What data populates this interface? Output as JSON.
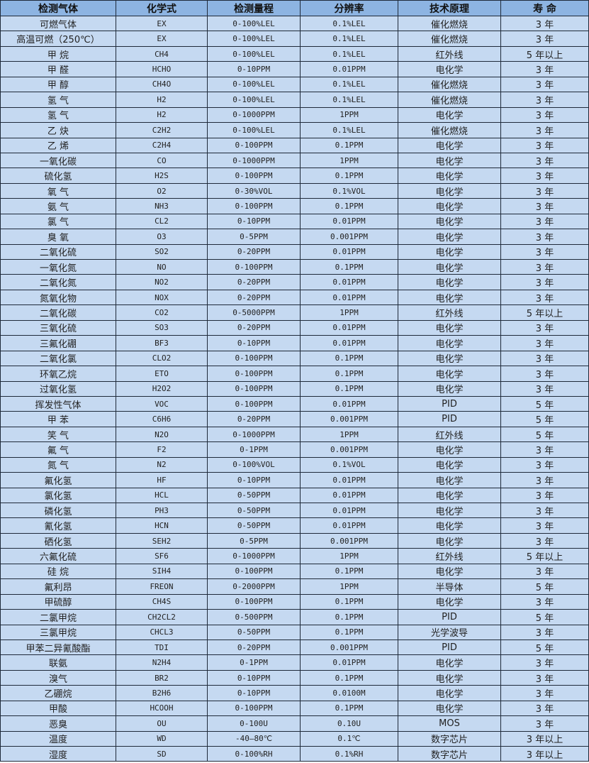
{
  "headers": [
    "检测气体",
    "化学式",
    "检测量程",
    "分辨率",
    "技术原理",
    "寿 命"
  ],
  "rows": [
    [
      "可燃气体",
      "EX",
      "0-100%LEL",
      "0.1%LEL",
      "催化燃烧",
      "3 年"
    ],
    [
      "高温可燃（250℃）",
      "EX",
      "0-100%LEL",
      "0.1%LEL",
      "催化燃烧",
      "3 年"
    ],
    [
      "甲 烷",
      "CH4",
      "0-100%LEL",
      "0.1%LEL",
      "红外线",
      "5 年以上"
    ],
    [
      "甲 醛",
      "HCHO",
      "0-10PPM",
      "0.01PPM",
      "电化学",
      "3 年"
    ],
    [
      "甲 醇",
      "CH4O",
      "0-100%LEL",
      "0.1%LEL",
      "催化燃烧",
      "3 年"
    ],
    [
      "氢 气",
      "H2",
      "0-100%LEL",
      "0.1%LEL",
      "催化燃烧",
      "3 年"
    ],
    [
      "氢 气",
      "H2",
      "0-1000PPM",
      "1PPM",
      "电化学",
      "3 年"
    ],
    [
      "乙 炔",
      "C2H2",
      "0-100%LEL",
      "0.1%LEL",
      "催化燃烧",
      "3 年"
    ],
    [
      "乙 烯",
      "C2H4",
      "0-100PPM",
      "0.1PPM",
      "电化学",
      "3 年"
    ],
    [
      "一氧化碳",
      "CO",
      "0-1000PPM",
      "1PPM",
      "电化学",
      "3 年"
    ],
    [
      "硫化氢",
      "H2S",
      "0-100PPM",
      "0.1PPM",
      "电化学",
      "3 年"
    ],
    [
      "氧 气",
      "O2",
      "0-30%VOL",
      "0.1%VOL",
      "电化学",
      "3 年"
    ],
    [
      "氨 气",
      "NH3",
      "0-100PPM",
      "0.1PPM",
      "电化学",
      "3 年"
    ],
    [
      "氯 气",
      "CL2",
      "0-10PPM",
      "0.01PPM",
      "电化学",
      "3 年"
    ],
    [
      "臭 氧",
      "O3",
      "0-5PPM",
      "0.001PPM",
      "电化学",
      "3 年"
    ],
    [
      "二氧化硫",
      "SO2",
      "0-20PPM",
      "0.01PPM",
      "电化学",
      "3 年"
    ],
    [
      "一氧化氮",
      "NO",
      "0-100PPM",
      "0.1PPM",
      "电化学",
      "3 年"
    ],
    [
      "二氧化氮",
      "NO2",
      "0-20PPM",
      "0.01PPM",
      "电化学",
      "3 年"
    ],
    [
      "氮氧化物",
      "NOX",
      "0-20PPM",
      "0.01PPM",
      "电化学",
      "3 年"
    ],
    [
      "二氧化碳",
      "CO2",
      "0-5000PPM",
      "1PPM",
      "红外线",
      "5 年以上"
    ],
    [
      "三氧化硫",
      "SO3",
      "0-20PPM",
      "0.01PPM",
      "电化学",
      "3 年"
    ],
    [
      "三氟化硼",
      "BF3",
      "0-10PPM",
      "0.01PPM",
      "电化学",
      "3 年"
    ],
    [
      "二氧化氯",
      "CLO2",
      "0-100PPM",
      "0.1PPM",
      "电化学",
      "3 年"
    ],
    [
      "环氧乙烷",
      "ETO",
      "0-100PPM",
      "0.1PPM",
      "电化学",
      "3 年"
    ],
    [
      "过氧化氢",
      "H2O2",
      "0-100PPM",
      "0.1PPM",
      "电化学",
      "3 年"
    ],
    [
      "挥发性气体",
      "VOC",
      "0-100PPM",
      "0.01PPM",
      "PID",
      "5 年"
    ],
    [
      "甲 苯",
      "C6H6",
      "0-20PPM",
      "0.001PPM",
      "PID",
      "5 年"
    ],
    [
      "笑 气",
      "N2O",
      "0-1000PPM",
      "1PPM",
      "红外线",
      "5 年"
    ],
    [
      "氟 气",
      "F2",
      "0-1PPM",
      "0.001PPM",
      "电化学",
      "3 年"
    ],
    [
      "氮 气",
      "N2",
      "0-100%VOL",
      "0.1%VOL",
      "电化学",
      "3 年"
    ],
    [
      "氟化氢",
      "HF",
      "0-10PPM",
      "0.01PPM",
      "电化学",
      "3 年"
    ],
    [
      "氯化氢",
      "HCL",
      "0-50PPM",
      "0.01PPM",
      "电化学",
      "3 年"
    ],
    [
      "磷化氢",
      "PH3",
      "0-50PPM",
      "0.01PPM",
      "电化学",
      "3 年"
    ],
    [
      "氰化氢",
      "HCN",
      "0-50PPM",
      "0.01PPM",
      "电化学",
      "3 年"
    ],
    [
      "硒化氢",
      "SEH2",
      "0-5PPM",
      "0.001PPM",
      "电化学",
      "3 年"
    ],
    [
      "六氟化硫",
      "SF6",
      "0-1000PPM",
      "1PPM",
      "红外线",
      "5 年以上"
    ],
    [
      "硅 烷",
      "SIH4",
      "0-100PPM",
      "0.1PPM",
      "电化学",
      "3 年"
    ],
    [
      "氟利昂",
      "FREON",
      "0-2000PPM",
      "1PPM",
      "半导体",
      "5 年"
    ],
    [
      "甲硫醇",
      "CH4S",
      "0-100PPM",
      "0.1PPM",
      "电化学",
      "3 年"
    ],
    [
      "二氯甲烷",
      "CH2CL2",
      "0-500PPM",
      "0.1PPM",
      "PID",
      "5 年"
    ],
    [
      "三氯甲烷",
      "CHCL3",
      "0-50PPM",
      "0.1PPM",
      "光学波导",
      "3 年"
    ],
    [
      "甲苯二异氰酸酯",
      "TDI",
      "0-20PPM",
      "0.001PPM",
      "PID",
      "5 年"
    ],
    [
      "联氨",
      "N2H4",
      "0-1PPM",
      "0.01PPM",
      "电化学",
      "3 年"
    ],
    [
      "溴气",
      "BR2",
      "0-10PPM",
      "0.1PPM",
      "电化学",
      "3 年"
    ],
    [
      "乙硼烷",
      "B2H6",
      "0-10PPM",
      "0.0100M",
      "电化学",
      "3 年"
    ],
    [
      "甲酸",
      "HCOOH",
      "0-100PPM",
      "0.1PPM",
      "电化学",
      "3 年"
    ],
    [
      "恶臭",
      "OU",
      "0-100U",
      "0.10U",
      "MOS",
      "3 年"
    ],
    [
      "温度",
      "WD",
      "-40—80℃",
      "0.1℃",
      "数字芯片",
      "3 年以上"
    ],
    [
      "湿度",
      "SD",
      "0-100%RH",
      "0.1%RH",
      "数字芯片",
      "3 年以上"
    ]
  ]
}
